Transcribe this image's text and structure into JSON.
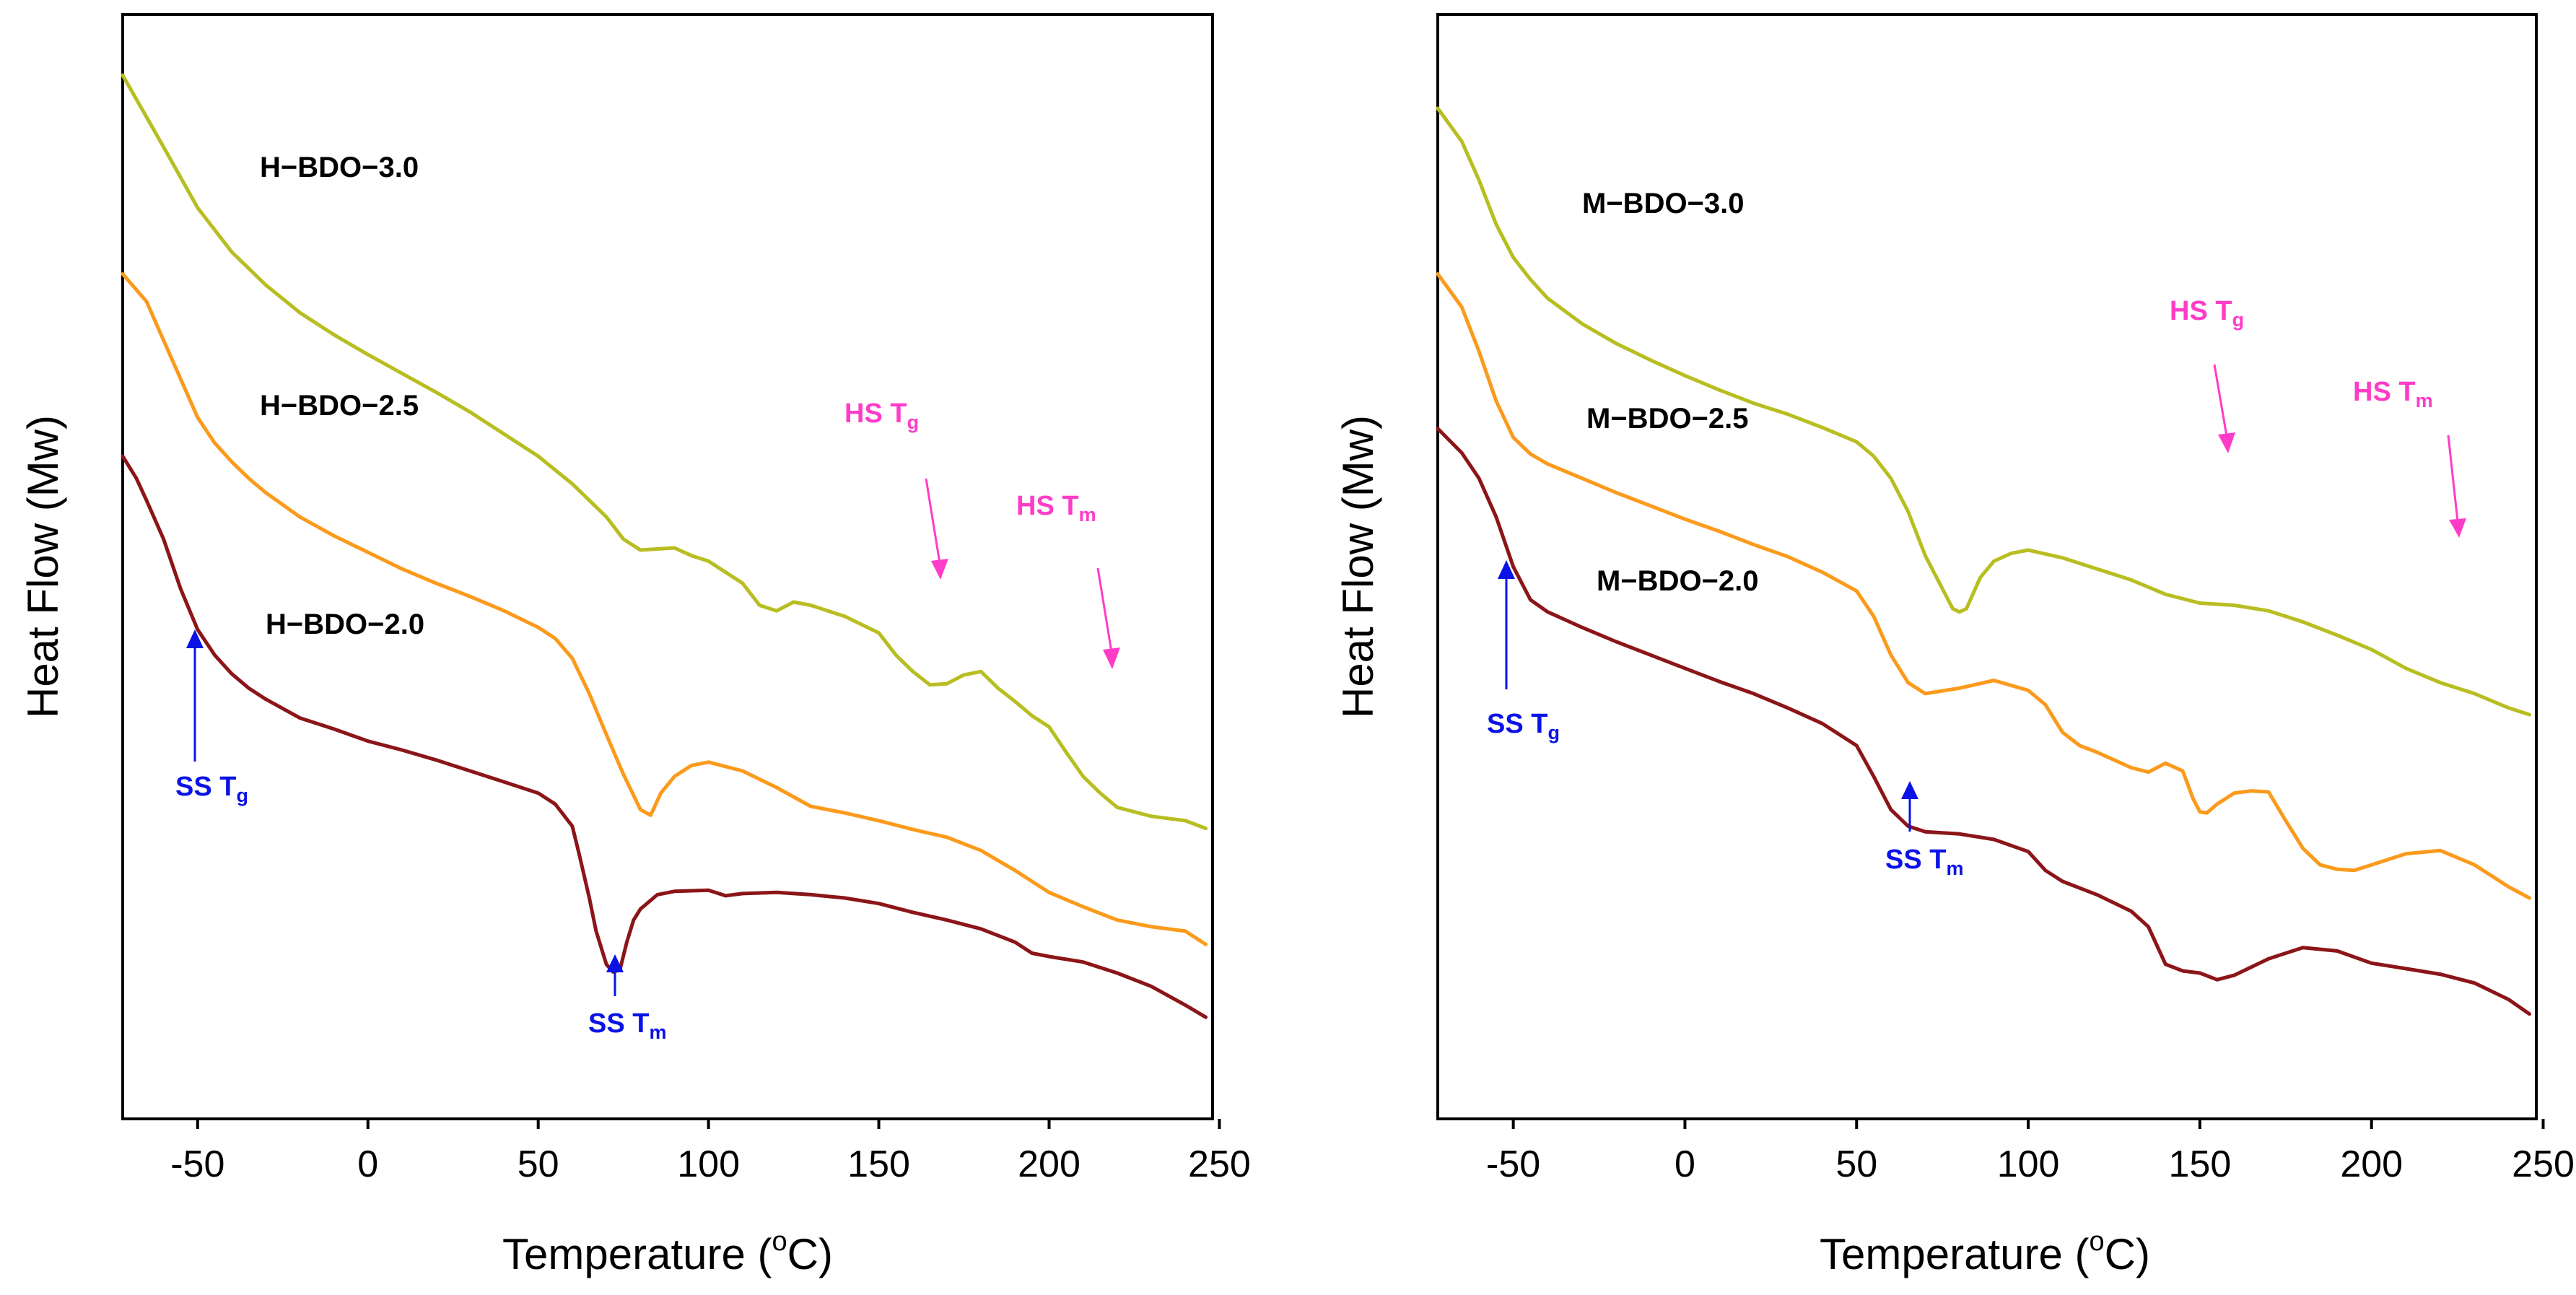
{
  "chart_data": [
    {
      "type": "line",
      "title": "",
      "xlabel": "Temperature (oC)",
      "xlabel_parts": {
        "pre": "Temperature (",
        "sup": "o",
        "post": "C)"
      },
      "ylabel": "Heat Flow (Mw)",
      "xlim": [
        -72,
        248
      ],
      "ylim": [
        0,
        100
      ],
      "y_ticks_shown": false,
      "x_ticks": [
        "-50",
        "0",
        "50",
        "100",
        "150",
        "200",
        "250"
      ],
      "x_tick_values": [
        -50,
        0,
        50,
        100,
        150,
        200,
        250
      ],
      "series": [
        {
          "name": "H-BDO-3.0",
          "color": "#b8be21",
          "x": [
            -72,
            -60,
            -50,
            -40,
            -30,
            -20,
            -10,
            0,
            10,
            20,
            30,
            40,
            50,
            60,
            65,
            70,
            75,
            80,
            85,
            90,
            95,
            100,
            105,
            110,
            115,
            120,
            125,
            130,
            140,
            150,
            155,
            160,
            165,
            170,
            175,
            180,
            185,
            190,
            195,
            200,
            205,
            210,
            215,
            220,
            230,
            240,
            246
          ],
          "y": [
            94.5,
            88,
            82.5,
            78.5,
            75.5,
            73,
            71,
            69.2,
            67.5,
            65.8,
            64,
            62,
            60,
            57.5,
            56,
            54.5,
            52.5,
            51.5,
            51.6,
            51.7,
            51,
            50.5,
            49.5,
            48.5,
            46.5,
            46,
            46.8,
            46.5,
            45.5,
            44,
            42,
            40.5,
            39.3,
            39.4,
            40.2,
            40.5,
            39,
            37.8,
            36.5,
            35.5,
            33.2,
            31,
            29.5,
            28.2,
            27.4,
            27,
            26.3
          ]
        },
        {
          "name": "H-BDO-2.5",
          "color": "#fb9a1b",
          "x": [
            -72,
            -65,
            -60,
            -55,
            -50,
            -45,
            -40,
            -35,
            -30,
            -20,
            -10,
            0,
            10,
            20,
            30,
            40,
            50,
            55,
            60,
            65,
            70,
            75,
            80,
            83,
            86,
            90,
            95,
            100,
            110,
            120,
            130,
            140,
            150,
            160,
            170,
            180,
            190,
            200,
            210,
            220,
            230,
            240,
            246
          ],
          "y": [
            76.5,
            74,
            70.5,
            67,
            63.5,
            61.2,
            59.5,
            58,
            56.7,
            54.5,
            52.8,
            51.3,
            49.8,
            48.5,
            47.3,
            46,
            44.5,
            43.5,
            41.7,
            38.5,
            34.8,
            31.2,
            28,
            27.5,
            29.5,
            31,
            32,
            32.3,
            31.5,
            30,
            28.3,
            27.7,
            27,
            26.2,
            25.5,
            24.3,
            22.5,
            20.5,
            19.2,
            18,
            17.4,
            17,
            15.8
          ]
        },
        {
          "name": "H-BDO-2.0",
          "color": "#8b1518",
          "x": [
            -72,
            -68,
            -65,
            -60,
            -55,
            -50,
            -45,
            -40,
            -35,
            -30,
            -20,
            -10,
            0,
            10,
            20,
            30,
            40,
            50,
            55,
            60,
            62,
            65,
            67,
            70,
            72,
            74,
            76,
            78,
            80,
            85,
            90,
            100,
            105,
            110,
            120,
            130,
            140,
            150,
            160,
            170,
            180,
            190,
            195,
            200,
            210,
            220,
            230,
            240,
            246
          ],
          "y": [
            60,
            58,
            56,
            52.5,
            48,
            44.3,
            42,
            40.3,
            39,
            38,
            36.3,
            35.3,
            34.2,
            33.4,
            32.5,
            31.5,
            30.5,
            29.5,
            28.5,
            26.5,
            24,
            20,
            17,
            14,
            13.3,
            13.5,
            16,
            18,
            19,
            20.3,
            20.6,
            20.7,
            20.2,
            20.4,
            20.5,
            20.3,
            20,
            19.5,
            18.7,
            18,
            17.2,
            16,
            15,
            14.7,
            14.2,
            13.2,
            12,
            10.3,
            9.2
          ]
        }
      ],
      "series_labels": [
        "H−BDO−3.0",
        "H−BDO−2.5",
        "H−BDO−2.0"
      ],
      "annotations": [
        {
          "base": "HS T",
          "sub": "g",
          "color": "#ff3cc8"
        },
        {
          "base": "HS T",
          "sub": "m",
          "color": "#ff3cc8"
        },
        {
          "base": "SS T",
          "sub": "g",
          "color": "#0a12e6"
        },
        {
          "base": "SS T",
          "sub": "m",
          "color": "#0a12e6"
        }
      ]
    },
    {
      "type": "line",
      "title": "",
      "xlabel": "Temperature (oC)",
      "xlabel_parts": {
        "pre": "Temperature (",
        "sup": "o",
        "post": "C)"
      },
      "ylabel": "Heat Flow (Mw)",
      "xlim": [
        -72,
        248
      ],
      "ylim": [
        0,
        100
      ],
      "y_ticks_shown": false,
      "x_ticks": [
        "-50",
        "0",
        "50",
        "100",
        "150",
        "200",
        "250"
      ],
      "x_tick_values": [
        -50,
        0,
        50,
        100,
        150,
        200,
        250
      ],
      "series": [
        {
          "name": "M-BDO-3.0",
          "color": "#b8be21",
          "x": [
            -72,
            -65,
            -60,
            -55,
            -50,
            -45,
            -40,
            -30,
            -20,
            -10,
            0,
            10,
            20,
            30,
            40,
            50,
            55,
            60,
            65,
            70,
            75,
            78,
            80,
            82,
            84,
            86,
            90,
            95,
            100,
            110,
            120,
            130,
            140,
            150,
            160,
            170,
            180,
            190,
            200,
            210,
            220,
            230,
            240,
            246
          ],
          "y": [
            91.5,
            88.5,
            85,
            81,
            78,
            76,
            74.3,
            72,
            70.2,
            68.7,
            67.3,
            66,
            64.8,
            63.8,
            62.6,
            61.3,
            60,
            58,
            55,
            51,
            48,
            46.2,
            45.9,
            46.2,
            47.6,
            49,
            50.5,
            51.2,
            51.5,
            50.8,
            49.8,
            48.8,
            47.5,
            46.7,
            46.5,
            46,
            45,
            43.8,
            42.5,
            40.8,
            39.5,
            38.5,
            37.2,
            36.6
          ]
        },
        {
          "name": "M-BDO-2.5",
          "color": "#fb9a1b",
          "x": [
            -72,
            -65,
            -60,
            -55,
            -50,
            -45,
            -40,
            -30,
            -20,
            -10,
            0,
            10,
            20,
            30,
            40,
            50,
            55,
            60,
            65,
            70,
            80,
            90,
            100,
            105,
            110,
            115,
            120,
            130,
            135,
            140,
            145,
            148,
            150,
            152,
            155,
            160,
            165,
            170,
            175,
            180,
            185,
            190,
            195,
            200,
            210,
            220,
            230,
            240,
            246
          ],
          "y": [
            76.5,
            73.5,
            69.5,
            65,
            61.7,
            60.2,
            59.3,
            58,
            56.7,
            55.5,
            54.3,
            53.2,
            52,
            50.9,
            49.5,
            47.8,
            45.5,
            42,
            39.5,
            38.5,
            39,
            39.7,
            38.8,
            37.5,
            35,
            33.8,
            33.2,
            31.8,
            31.4,
            32.2,
            31.5,
            29,
            27.8,
            27.7,
            28.5,
            29.5,
            29.7,
            29.6,
            27,
            24.5,
            23,
            22.6,
            22.5,
            23,
            24,
            24.3,
            23,
            21,
            20
          ]
        },
        {
          "name": "M-BDO-2.0",
          "color": "#8b1518",
          "x": [
            -72,
            -65,
            -60,
            -55,
            -50,
            -45,
            -40,
            -35,
            -30,
            -20,
            -10,
            0,
            10,
            20,
            30,
            40,
            50,
            55,
            60,
            65,
            70,
            80,
            90,
            100,
            105,
            110,
            120,
            130,
            135,
            140,
            145,
            150,
            155,
            160,
            170,
            180,
            190,
            200,
            210,
            220,
            230,
            240,
            246
          ],
          "y": [
            62.5,
            60.3,
            58,
            54.5,
            50,
            47,
            45.9,
            45.2,
            44.5,
            43.2,
            42,
            40.8,
            39.6,
            38.5,
            37.2,
            35.8,
            33.8,
            31,
            28,
            26.5,
            26,
            25.8,
            25.3,
            24.2,
            22.5,
            21.5,
            20.3,
            18.8,
            17.4,
            14,
            13.4,
            13.2,
            12.6,
            13,
            14.5,
            15.5,
            15.2,
            14.1,
            13.6,
            13.1,
            12.3,
            10.8,
            9.5
          ]
        }
      ],
      "series_labels": [
        "M−BDO−3.0",
        "M−BDO−2.5",
        "M−BDO−2.0"
      ],
      "annotations": [
        {
          "base": "HS T",
          "sub": "g",
          "color": "#ff3cc8"
        },
        {
          "base": "HS T",
          "sub": "m",
          "color": "#ff3cc8"
        },
        {
          "base": "SS T",
          "sub": "g",
          "color": "#0a12e6"
        },
        {
          "base": "SS T",
          "sub": "m",
          "color": "#0a12e6"
        }
      ]
    }
  ]
}
